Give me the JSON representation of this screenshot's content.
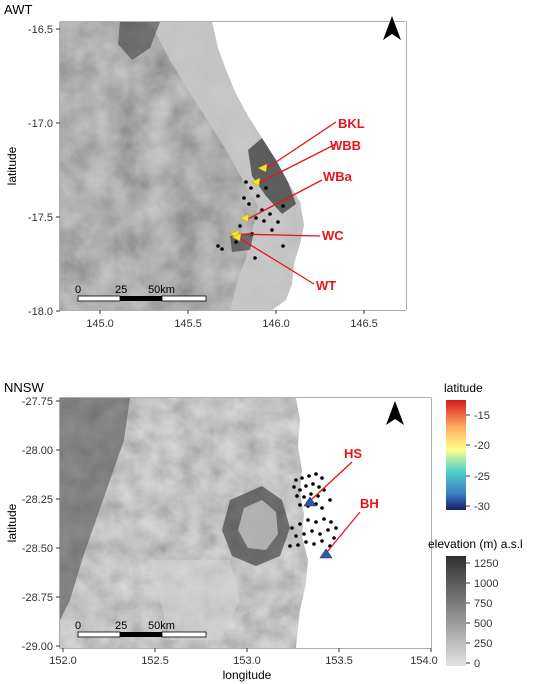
{
  "panels": [
    {
      "id": "awt",
      "title": "AWT",
      "ylabel": "latitude",
      "xlabel": "",
      "x_ticks": [
        "145.0",
        "145.5",
        "146.0",
        "146.5"
      ],
      "y_ticks": [
        "-16.5",
        "-17.0",
        "-17.5",
        "-18.0"
      ],
      "scalebar": {
        "label_start": "0",
        "label_mid": "25",
        "label_end": "50km"
      },
      "sites": [
        {
          "code": "BKL",
          "marker_color": "#f5e52a"
        },
        {
          "code": "WBB",
          "marker_color": "#f5e52a"
        },
        {
          "code": "WBa",
          "marker_color": "#f5e52a"
        },
        {
          "code": "WC",
          "marker_color": "#f5e52a"
        },
        {
          "code": "WT",
          "marker_color": "#f5e52a"
        }
      ]
    },
    {
      "id": "nnsw",
      "title": "NNSW",
      "ylabel": "latitude",
      "xlabel": "longitude",
      "x_ticks": [
        "152.0",
        "152.5",
        "153.0",
        "153.5",
        "154.0"
      ],
      "y_ticks": [
        "-27.75",
        "-28.00",
        "-28.25",
        "-28.50",
        "-28.75",
        "-29.00"
      ],
      "scalebar": {
        "label_start": "0",
        "label_mid": "25",
        "label_end": "50km"
      },
      "sites": [
        {
          "code": "HS",
          "marker_color": "#2d5aa8"
        },
        {
          "code": "BH",
          "marker_color": "#2d5aa8"
        }
      ]
    }
  ],
  "legend_latitude": {
    "title": "latitude",
    "ticks": [
      "-15",
      "-20",
      "-25",
      "-30"
    ]
  },
  "legend_elevation": {
    "title": "elevation (m) a.s.l",
    "ticks": [
      "1250",
      "1000",
      "750",
      "500",
      "250",
      "0"
    ]
  },
  "colors": {
    "annotation": "#e8141c",
    "terrain_high": "#3a3a3a",
    "terrain_low": "#d9d9d9",
    "sea": "#ffffff"
  }
}
